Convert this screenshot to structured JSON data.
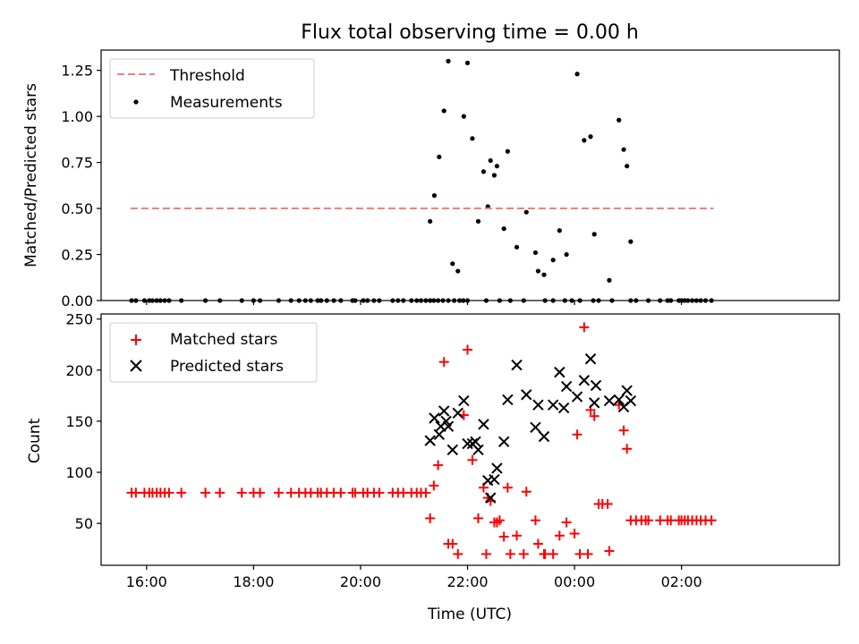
{
  "figure": {
    "title": "Flux total observing time = 0.00 h"
  },
  "chart_data": [
    {
      "type": "scatter",
      "title": "Flux total observing time = 0.00 h",
      "xlabel": "",
      "ylabel": "Matched/Predicted stars",
      "xlim": [
        -0.85,
        12.95
      ],
      "ylim": [
        0,
        1.36
      ],
      "x_unit": "hours since 16:00 UTC",
      "x_ticks": [
        0,
        2,
        4,
        6,
        8,
        10
      ],
      "x_tick_labels": [
        "16:00",
        "18:00",
        "20:00",
        "22:00",
        "00:00",
        "02:00"
      ],
      "y_ticks": [
        0,
        0.25,
        0.5,
        0.75,
        1.0,
        1.25
      ],
      "y_tick_labels": [
        "0.00",
        "0.25",
        "0.50",
        "0.75",
        "1.00",
        "1.25"
      ],
      "legend_position": "top-left",
      "legend": [
        "Threshold",
        "Measurements"
      ],
      "threshold": {
        "name": "Threshold",
        "y": 0.5,
        "x_range": [
          -0.3,
          10.6
        ],
        "color": "#f08080"
      },
      "measurements": {
        "name": "Measurements",
        "color": "#000000",
        "x": [
          -0.28,
          -0.2,
          -0.04,
          0.05,
          0.11,
          0.19,
          0.26,
          0.34,
          0.42,
          0.65,
          1.1,
          1.37,
          1.78,
          2.0,
          2.12,
          2.47,
          2.7,
          2.85,
          2.97,
          3.07,
          3.2,
          3.26,
          3.37,
          3.5,
          3.63,
          3.85,
          3.9,
          4.05,
          4.13,
          4.25,
          4.35,
          4.6,
          4.7,
          4.8,
          4.95,
          5.05,
          5.13,
          5.22,
          5.3,
          5.37,
          5.45,
          5.54,
          5.64,
          5.75,
          5.85,
          5.92,
          6.0,
          6.35,
          6.6,
          6.8,
          7.05,
          7.45,
          7.6,
          7.82,
          7.95,
          8.1,
          8.35,
          8.45,
          8.7,
          9.05,
          9.15,
          9.38,
          9.6,
          9.74,
          9.8,
          9.95,
          10.0,
          10.06,
          10.12,
          10.2,
          10.28,
          10.36,
          10.45,
          10.56
        ],
        "y": [
          0,
          0,
          0,
          0,
          0,
          0,
          0,
          0,
          0,
          0,
          0,
          0,
          0,
          0,
          0,
          0,
          0,
          0,
          0,
          0,
          0,
          0,
          0,
          0,
          0,
          0,
          0,
          0,
          0,
          0,
          0,
          0,
          0,
          0,
          0,
          0,
          0,
          0,
          0,
          0,
          0,
          0,
          0,
          0,
          0,
          0,
          0,
          0,
          0,
          0,
          0,
          0,
          0,
          0,
          0,
          0,
          0,
          0,
          0,
          0,
          0,
          0,
          0,
          0,
          0,
          0,
          0,
          0,
          0,
          0,
          0,
          0,
          0,
          0
        ],
        "x2": [
          5.3,
          5.38,
          5.47,
          5.56,
          5.64,
          5.72,
          5.82,
          5.93,
          6.0,
          6.09,
          6.2,
          6.3,
          6.38,
          6.43,
          6.5,
          6.55,
          6.68,
          6.75,
          6.92,
          7.1,
          7.27,
          7.32,
          7.43,
          7.6,
          7.72,
          7.85,
          8.05,
          8.18,
          8.3,
          8.37,
          8.65,
          8.83,
          8.92,
          8.98,
          9.05
        ],
        "y2": [
          0.43,
          0.57,
          0.78,
          1.03,
          1.3,
          0.2,
          0.16,
          1.0,
          1.29,
          0.88,
          0.43,
          0.7,
          0.51,
          0.76,
          0.68,
          0.73,
          0.39,
          0.81,
          0.29,
          0.48,
          0.26,
          0.16,
          0.14,
          0.22,
          0.38,
          0.25,
          1.23,
          0.87,
          0.89,
          0.36,
          0.11,
          0.98,
          0.82,
          0.73,
          0.32
        ]
      }
    },
    {
      "type": "scatter",
      "title": "",
      "xlabel": "Time (UTC)",
      "ylabel": "Count",
      "xlim": [
        -0.85,
        12.95
      ],
      "ylim": [
        9,
        255
      ],
      "x_ticks": [
        0,
        2,
        4,
        6,
        8,
        10
      ],
      "x_tick_labels": [
        "16:00",
        "18:00",
        "20:00",
        "22:00",
        "00:00",
        "02:00"
      ],
      "y_ticks": [
        50,
        100,
        150,
        200,
        250
      ],
      "y_tick_labels": [
        "50",
        "100",
        "150",
        "200",
        "250"
      ],
      "legend_position": "top-left",
      "legend": [
        "Matched stars",
        "Predicted stars"
      ],
      "series": [
        {
          "name": "Matched stars",
          "marker": "plus",
          "color": "#ff0000",
          "x": [
            -0.28,
            -0.2,
            -0.04,
            0.05,
            0.11,
            0.19,
            0.26,
            0.34,
            0.42,
            0.65,
            1.1,
            1.37,
            1.78,
            2.0,
            2.12,
            2.47,
            2.7,
            2.85,
            2.97,
            3.07,
            3.2,
            3.26,
            3.37,
            3.5,
            3.63,
            3.85,
            3.9,
            4.05,
            4.13,
            4.25,
            4.35,
            4.6,
            4.7,
            4.8,
            4.95,
            5.05,
            5.13,
            5.22,
            5.3,
            5.37,
            5.45,
            5.56,
            5.64,
            5.72,
            5.82,
            5.93,
            6.0,
            6.09,
            6.2,
            6.3,
            6.38,
            6.43,
            6.5,
            6.55,
            6.68,
            6.75,
            6.92,
            7.1,
            7.27,
            7.32,
            7.43,
            7.6,
            7.72,
            7.85,
            8.05,
            8.18,
            8.3,
            8.37,
            8.65,
            8.83,
            8.92,
            8.98,
            9.05,
            9.38,
            9.6,
            9.74,
            9.8,
            9.95,
            10.0,
            10.06,
            10.12,
            10.2,
            10.28,
            10.36,
            10.45,
            10.56,
            6.35,
            6.6,
            6.8,
            7.05,
            7.45,
            8.0,
            8.1,
            8.25,
            8.45,
            8.52,
            8.62,
            9.15,
            9.25,
            9.33
          ],
          "y": [
            80,
            80,
            80,
            80,
            80,
            80,
            80,
            80,
            80,
            80,
            80,
            80,
            80,
            80,
            80,
            80,
            80,
            80,
            80,
            80,
            80,
            80,
            80,
            80,
            80,
            80,
            80,
            80,
            80,
            80,
            80,
            80,
            80,
            80,
            80,
            80,
            80,
            80,
            55,
            87,
            107,
            208,
            30,
            30,
            20,
            156,
            220,
            112,
            55,
            85,
            75,
            72,
            51,
            51,
            37,
            85,
            38,
            81,
            53,
            30,
            20,
            20,
            38,
            51,
            137,
            242,
            161,
            155,
            23,
            166,
            141,
            123,
            53,
            53,
            53,
            53,
            53,
            53,
            53,
            53,
            53,
            53,
            53,
            53,
            53,
            53,
            20,
            53,
            20,
            20,
            20,
            40,
            20,
            20,
            69,
            69,
            69,
            53,
            53,
            53
          ]
        },
        {
          "name": "Predicted stars",
          "marker": "x",
          "color": "#000000",
          "x": [
            5.3,
            5.38,
            5.47,
            5.56,
            5.64,
            5.72,
            5.82,
            5.93,
            6.0,
            6.09,
            6.2,
            6.3,
            6.38,
            6.43,
            6.5,
            6.55,
            6.68,
            6.75,
            6.92,
            7.1,
            7.27,
            7.32,
            7.43,
            7.6,
            7.72,
            7.85,
            8.05,
            8.18,
            8.3,
            8.37,
            8.65,
            8.83,
            8.92,
            8.98,
            9.05,
            5.5,
            5.6,
            6.15,
            7.8,
            8.4
          ],
          "y": [
            131,
            153,
            137,
            160,
            145,
            122,
            158,
            170,
            128,
            128,
            122,
            147,
            92,
            75,
            93,
            104,
            130,
            171,
            205,
            176,
            144,
            166,
            135,
            166,
            198,
            184,
            174,
            190,
            211,
            168,
            170,
            171,
            164,
            180,
            170,
            145,
            150,
            130,
            163,
            185
          ]
        }
      ]
    }
  ]
}
